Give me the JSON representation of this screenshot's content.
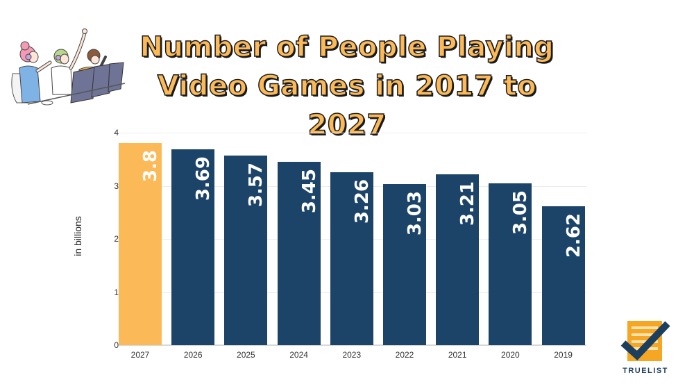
{
  "title": {
    "line1": "Number of People Playing",
    "line2": "Video Games in 2017 to 2027"
  },
  "illustration": {
    "icon": "gamers-celebrating-illustration"
  },
  "logo": {
    "text": "TRUELIST",
    "icon": "checkmark-list-icon"
  },
  "colors": {
    "highlight": "#fbb957",
    "bar": "#1c4368",
    "title_fill": "#fbb957",
    "title_stroke": "#1a1a1a",
    "logo_orange": "#f5a623",
    "logo_navy": "#1c3f5f"
  },
  "chart_data": {
    "type": "bar",
    "title": "Number of People Playing Video Games in 2017 to 2027",
    "xlabel": "",
    "ylabel": "in billions",
    "ylim": [
      0,
      4
    ],
    "yticks": [
      "0",
      "1",
      "2",
      "3",
      "4"
    ],
    "grid": true,
    "legend": null,
    "categories": [
      "2027",
      "2026",
      "2025",
      "2024",
      "2023",
      "2022",
      "2021",
      "2020",
      "2019"
    ],
    "values": [
      3.8,
      3.69,
      3.57,
      3.45,
      3.26,
      3.03,
      3.21,
      3.05,
      2.62
    ],
    "value_labels": [
      "3.8",
      "3.69",
      "3.57",
      "3.45",
      "3.26",
      "3.03",
      "3.21",
      "3.05",
      "2.62"
    ],
    "highlighted_category": "2027"
  }
}
